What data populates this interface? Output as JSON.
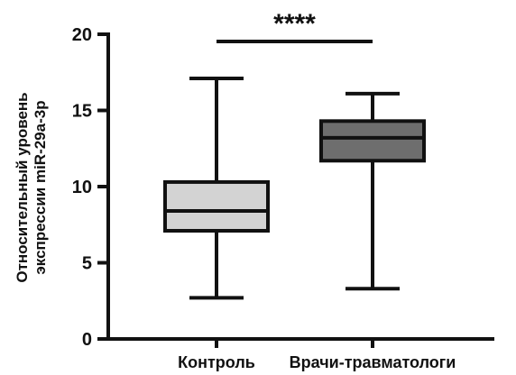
{
  "chart_data": {
    "type": "box",
    "title": "",
    "ylabel_lines": [
      "Относительный уровень",
      "экспрессии miR-29a-3p"
    ],
    "ylim": [
      0,
      20
    ],
    "yticks": [
      0,
      5,
      10,
      15,
      20
    ],
    "categories": [
      "Контроль",
      "Врачи-травматологи"
    ],
    "boxes": [
      {
        "category": "Контроль",
        "min": 2.7,
        "q1": 7.1,
        "median": 8.4,
        "q3": 10.3,
        "max": 17.1,
        "fill": "#d3d3d3"
      },
      {
        "category": "Врачи-травматологи",
        "min": 3.3,
        "q1": 11.7,
        "median": 13.2,
        "q3": 14.3,
        "max": 16.1,
        "fill": "#6e6e6e"
      }
    ],
    "significance": {
      "label": "****",
      "between": [
        0,
        1
      ]
    },
    "colors": {
      "axis": "#111111",
      "box_edge": "#111111"
    }
  }
}
